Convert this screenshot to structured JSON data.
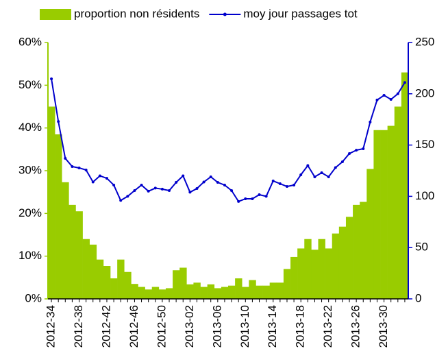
{
  "chart_data": {
    "type": "bar_line",
    "categories": [
      "2012-34",
      null,
      null,
      null,
      "2012-38",
      null,
      null,
      null,
      "2012-42",
      null,
      null,
      null,
      "2012-46",
      null,
      null,
      null,
      "2012-50",
      null,
      null,
      null,
      "2013-02",
      null,
      null,
      null,
      "2013-06",
      null,
      null,
      null,
      "2013-10",
      null,
      null,
      null,
      "2013-14",
      null,
      null,
      null,
      "2013-18",
      null,
      null,
      null,
      "2013-22",
      null,
      null,
      null,
      "2013-26",
      null,
      null,
      null,
      "2013-30",
      null,
      null,
      null
    ],
    "series": [
      {
        "name": "proportion non résidents",
        "type": "bar",
        "color": "#99cc00",
        "values": [
          45,
          38.5,
          27.3,
          22,
          20.5,
          14,
          12.7,
          9.2,
          7.7,
          4.8,
          9.2,
          6.3,
          3.5,
          2.8,
          2.2,
          2.8,
          2.2,
          2.5,
          6.7,
          7.3,
          3.4,
          3.8,
          2.8,
          3.4,
          2.5,
          2.8,
          3.1,
          4.8,
          2.8,
          4.4,
          3.1,
          3.1,
          3.8,
          3.8,
          7,
          9.8,
          11.8,
          14,
          11.5,
          14,
          11.8,
          15.3,
          16.9,
          19.2,
          22,
          22.7,
          30.4,
          39.5,
          39.5,
          40.5,
          45,
          53
        ]
      },
      {
        "name": "moy jour passages tot",
        "type": "line",
        "color": "#0000cc",
        "axis": "y2",
        "values": [
          214.6,
          173,
          137,
          129,
          127.7,
          125.7,
          114,
          120,
          117.6,
          111,
          96,
          100,
          105.6,
          111,
          105,
          108,
          107,
          105.6,
          113.6,
          120,
          104,
          107.6,
          114,
          119,
          113.6,
          111,
          105.6,
          95,
          97.6,
          97.6,
          101.6,
          100,
          115,
          112.3,
          109.6,
          111,
          121,
          130,
          119,
          123,
          119,
          128,
          133.7,
          141.7,
          145,
          146.4,
          172.5,
          193.9,
          198.5,
          194.5,
          200,
          211
        ]
      }
    ],
    "ylim": [
      0,
      60
    ],
    "yticks": [
      {
        "value": 0,
        "label": "0%"
      },
      {
        "value": 10,
        "label": "10%"
      },
      {
        "value": 20,
        "label": "20%"
      },
      {
        "value": 30,
        "label": "30%"
      },
      {
        "value": 40,
        "label": "40%"
      },
      {
        "value": 50,
        "label": "50%"
      },
      {
        "value": 60,
        "label": "60%"
      }
    ],
    "y2lim": [
      0,
      250
    ],
    "y2ticks": [
      0,
      50,
      100,
      150,
      200,
      250
    ],
    "legend": "top"
  }
}
